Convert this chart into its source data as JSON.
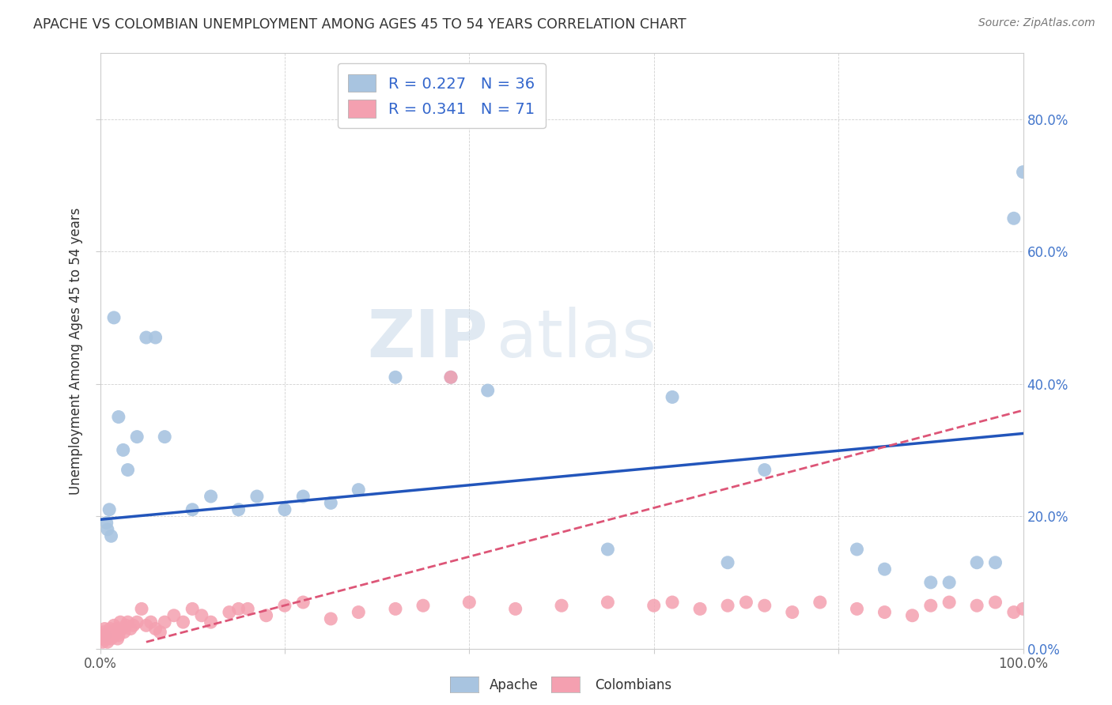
{
  "title": "APACHE VS COLOMBIAN UNEMPLOYMENT AMONG AGES 45 TO 54 YEARS CORRELATION CHART",
  "source": "Source: ZipAtlas.com",
  "ylabel": "Unemployment Among Ages 45 to 54 years",
  "xlim": [
    0,
    1.0
  ],
  "ylim": [
    0,
    0.9
  ],
  "xticks": [
    0.0,
    0.2,
    0.4,
    0.6,
    0.8,
    1.0
  ],
  "xticklabels": [
    "0.0%",
    "",
    "",
    "",
    "",
    "100.0%"
  ],
  "yticks": [
    0.0,
    0.2,
    0.4,
    0.6,
    0.8
  ],
  "yticklabels": [
    "",
    "",
    "",
    "",
    ""
  ],
  "right_yticklabels": [
    "0.0%",
    "20.0%",
    "40.0%",
    "60.0%",
    "80.0%"
  ],
  "apache_color": "#a8c4e0",
  "colombian_color": "#f4a0b0",
  "apache_line_color": "#2255bb",
  "colombian_line_color": "#dd5577",
  "apache_R": 0.227,
  "apache_N": 36,
  "colombian_R": 0.341,
  "colombian_N": 71,
  "background_color": "#ffffff",
  "apache_x": [
    0.005,
    0.007,
    0.008,
    0.01,
    0.012,
    0.015,
    0.02,
    0.025,
    0.03,
    0.04,
    0.05,
    0.06,
    0.07,
    0.1,
    0.12,
    0.15,
    0.17,
    0.2,
    0.22,
    0.25,
    0.28,
    0.32,
    0.38,
    0.42,
    0.55,
    0.62,
    0.68,
    0.72,
    0.82,
    0.85,
    0.9,
    0.92,
    0.95,
    0.97,
    0.99,
    1.0
  ],
  "apache_y": [
    0.02,
    0.19,
    0.18,
    0.21,
    0.17,
    0.5,
    0.35,
    0.3,
    0.27,
    0.32,
    0.47,
    0.47,
    0.32,
    0.21,
    0.23,
    0.21,
    0.23,
    0.21,
    0.23,
    0.22,
    0.24,
    0.41,
    0.41,
    0.39,
    0.15,
    0.38,
    0.13,
    0.27,
    0.15,
    0.12,
    0.1,
    0.1,
    0.13,
    0.13,
    0.65,
    0.72
  ],
  "colombian_x": [
    0.001,
    0.002,
    0.003,
    0.004,
    0.005,
    0.006,
    0.007,
    0.008,
    0.009,
    0.01,
    0.011,
    0.012,
    0.013,
    0.014,
    0.015,
    0.016,
    0.017,
    0.018,
    0.019,
    0.02,
    0.022,
    0.024,
    0.026,
    0.028,
    0.03,
    0.033,
    0.036,
    0.04,
    0.045,
    0.05,
    0.055,
    0.06,
    0.065,
    0.07,
    0.08,
    0.09,
    0.1,
    0.11,
    0.12,
    0.14,
    0.15,
    0.16,
    0.18,
    0.2,
    0.22,
    0.25,
    0.28,
    0.32,
    0.35,
    0.4,
    0.45,
    0.5,
    0.55,
    0.6,
    0.62,
    0.65,
    0.68,
    0.7,
    0.72,
    0.75,
    0.78,
    0.82,
    0.85,
    0.88,
    0.9,
    0.92,
    0.95,
    0.97,
    0.99,
    1.0,
    0.38
  ],
  "colombian_y": [
    0.02,
    0.015,
    0.01,
    0.025,
    0.03,
    0.02,
    0.015,
    0.01,
    0.02,
    0.025,
    0.03,
    0.015,
    0.02,
    0.025,
    0.035,
    0.02,
    0.025,
    0.03,
    0.015,
    0.02,
    0.04,
    0.03,
    0.025,
    0.035,
    0.04,
    0.03,
    0.035,
    0.04,
    0.06,
    0.035,
    0.04,
    0.03,
    0.025,
    0.04,
    0.05,
    0.04,
    0.06,
    0.05,
    0.04,
    0.055,
    0.06,
    0.06,
    0.05,
    0.065,
    0.07,
    0.045,
    0.055,
    0.06,
    0.065,
    0.07,
    0.06,
    0.065,
    0.07,
    0.065,
    0.07,
    0.06,
    0.065,
    0.07,
    0.065,
    0.055,
    0.07,
    0.06,
    0.055,
    0.05,
    0.065,
    0.07,
    0.065,
    0.07,
    0.055,
    0.06,
    0.41
  ],
  "apache_trend_x": [
    0.0,
    1.0
  ],
  "apache_trend_y": [
    0.195,
    0.325
  ],
  "colombian_trend_x": [
    0.05,
    1.0
  ],
  "colombian_trend_y": [
    0.01,
    0.36
  ]
}
